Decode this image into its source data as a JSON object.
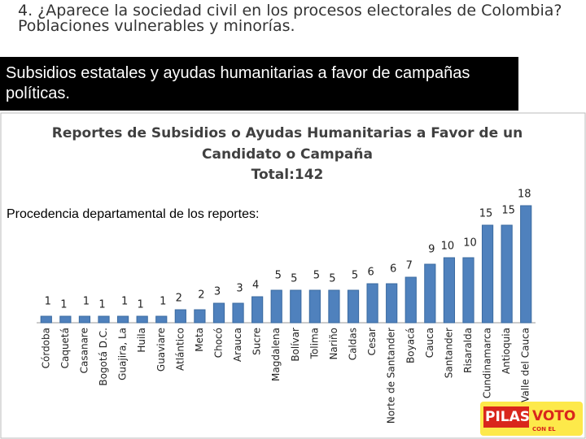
{
  "slide_title": "4. ¿Aparece la sociedad civil en los procesos electorales de Colombia? Poblaciones vulnerables y minorías.",
  "highlight": "Subsidios estatales y ayudas humanitarias a favor de campañas políticas.",
  "note": "Procedencia departamental de los reportes:",
  "logo": {
    "main": "PILAS",
    "sub": "CON EL",
    "accent": "VOTO"
  },
  "chart_data": {
    "type": "bar",
    "title": [
      "Reportes de Subsidios o Ayudas Humanitarias a Favor de un",
      "Candidato o Campaña",
      "Total:142"
    ],
    "categories": [
      "Córdoba",
      "Caquetá",
      "Casanare",
      "Bogotá D.C.",
      "Guajira, La",
      "Huila",
      "Guaviare",
      "Atlántico",
      "Meta",
      "Chocó",
      "Arauca",
      "Sucre",
      "Magdalena",
      "Bolívar",
      "Tolima",
      "Nariño",
      "Caldas",
      "Cesar",
      "Norte de Santander",
      "Boyacá",
      "Cauca",
      "Santander",
      "Risaralda",
      "Cundinamarca",
      "Antioquia",
      "Valle del Cauca"
    ],
    "values": [
      1,
      1,
      1,
      1,
      1,
      1,
      1,
      2,
      2,
      3,
      3,
      4,
      5,
      5,
      5,
      5,
      5,
      6,
      6,
      7,
      9,
      10,
      10,
      15,
      15,
      18
    ],
    "color": "#4f81bd",
    "ylim": [
      0,
      20
    ]
  }
}
